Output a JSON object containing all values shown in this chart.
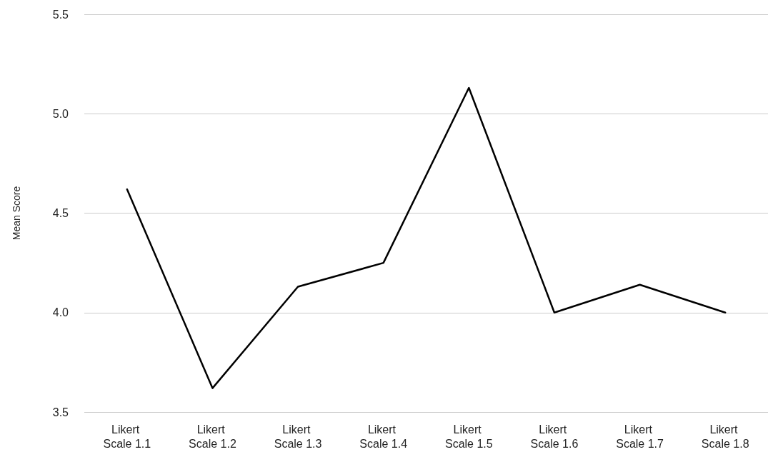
{
  "chart_data": {
    "type": "line",
    "ylabel": "Mean Score",
    "categories": [
      "Likert Scale 1.1",
      "Likert Scale 1.2",
      "Likert Scale 1.3",
      "Likert Scale 1.4",
      "Likert Scale 1.5",
      "Likert Scale 1.6",
      "Likert Scale 1.7",
      "Likert Scale 1.8"
    ],
    "series": [
      {
        "color": "#000000",
        "values": [
          4.62,
          3.62,
          4.13,
          4.25,
          5.13,
          4.0,
          4.14,
          4.0
        ]
      }
    ],
    "ylim": [
      3.5,
      5.5
    ],
    "yticks": [
      {
        "value": 3.5,
        "label": "3.5"
      },
      {
        "value": 4,
        "label": "4.0"
      },
      {
        "value": 4.5,
        "label": "4.5"
      },
      {
        "value": 5,
        "label": "5.0"
      },
      {
        "value": 5.5,
        "label": "5.5"
      }
    ],
    "grid": "y",
    "marker": "none",
    "line_style": "solid"
  }
}
